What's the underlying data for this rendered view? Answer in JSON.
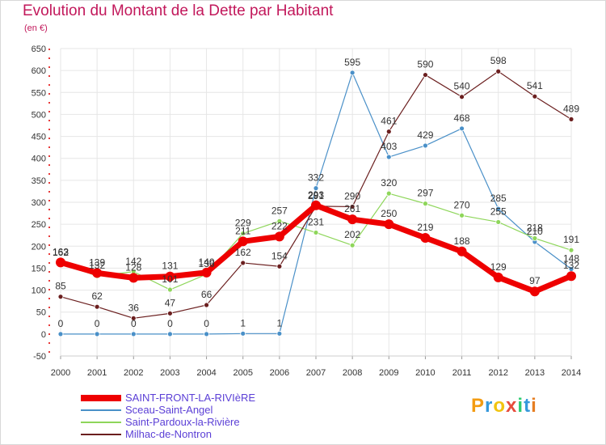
{
  "title": "Evolution du Montant de la Dette par Habitant",
  "unit": "(en €)",
  "logo": {
    "letters": [
      "P",
      "r",
      "o",
      "x",
      "i",
      "t",
      "i"
    ],
    "colors": [
      "#f39c12",
      "#3498db",
      "#f1c40f",
      "#e74c3c",
      "#2ecc71",
      "#3498db",
      "#e67e22"
    ]
  },
  "chart_data": {
    "type": "line",
    "title": "Evolution du Montant de la Dette par Habitant",
    "ylabel": "(en €)",
    "xlabel": "",
    "x": [
      2000,
      2001,
      2002,
      2003,
      2004,
      2005,
      2006,
      2007,
      2008,
      2009,
      2010,
      2011,
      2012,
      2013,
      2014
    ],
    "yticks": [
      -50,
      0,
      50,
      100,
      150,
      200,
      250,
      300,
      350,
      400,
      450,
      500,
      550,
      600,
      650
    ],
    "ylim": [
      -50,
      650
    ],
    "grid": true,
    "legend_position": "bottom-left",
    "series": [
      {
        "name": "Sceau-Saint-Angel",
        "color": "#4a90c8",
        "values": [
          0,
          0,
          0,
          0,
          0,
          1,
          1,
          332,
          595,
          403,
          429,
          468,
          285,
          210,
          148
        ]
      },
      {
        "name": "Saint-Pardoux-la-Rivière",
        "color": "#8ed65a",
        "values": [
          162,
          132,
          142,
          101,
          136,
          229,
          257,
          231,
          202,
          320,
          297,
          270,
          255,
          218,
          191
        ]
      },
      {
        "name": "Milhac-de-Nontron",
        "color": "#6b1f1f",
        "values": [
          85,
          62,
          36,
          47,
          66,
          162,
          154,
          291,
          290,
          461,
          590,
          540,
          598,
          541,
          489
        ]
      },
      {
        "name": "SAINT-FRONT-LA-RIVIèRE",
        "color": "#ee0000",
        "values": [
          163,
          139,
          128,
          131,
          140,
          211,
          222,
          293,
          261,
          250,
          219,
          188,
          129,
          97,
          132
        ]
      }
    ]
  }
}
